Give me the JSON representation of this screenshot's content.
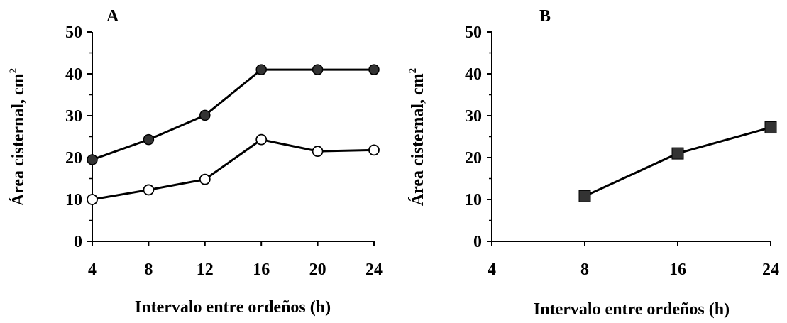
{
  "chart_data": [
    {
      "panel_label": "A",
      "type": "line",
      "xlabel": "Intervalo entre ordeños (h)",
      "ylabel": "Área cisternal, cm",
      "ylabel_sup": "2",
      "x": [
        4,
        8,
        12,
        16,
        20,
        24
      ],
      "xlim": [
        4,
        24
      ],
      "ylim": [
        0,
        50
      ],
      "xticks": [
        4,
        8,
        12,
        16,
        20,
        24
      ],
      "yticks": [
        0,
        10,
        20,
        30,
        40,
        50
      ],
      "grid": false,
      "series": [
        {
          "values": [
            19.5,
            24.3,
            30.1,
            41.0,
            41.0,
            41.0
          ],
          "marker": "filled-circle",
          "color": "#333333"
        },
        {
          "values": [
            10.0,
            12.3,
            14.8,
            24.3,
            21.5,
            21.8
          ],
          "marker": "open-circle",
          "color": "#000000"
        }
      ]
    },
    {
      "panel_label": "B",
      "type": "line",
      "xlabel": "Intervalo entre ordeños (h)",
      "ylabel": "Área cisternal, cm",
      "ylabel_sup": "2",
      "categories": [
        "4",
        "8",
        "16",
        "24"
      ],
      "ylim": [
        0,
        50
      ],
      "yticks": [
        0,
        10,
        20,
        30,
        40,
        50
      ],
      "grid": false,
      "series": [
        {
          "points": [
            [
              "8",
              10.8
            ],
            [
              "16",
              21.0
            ],
            [
              "24",
              27.2
            ]
          ],
          "marker": "filled-square",
          "color": "#333333"
        }
      ]
    }
  ]
}
